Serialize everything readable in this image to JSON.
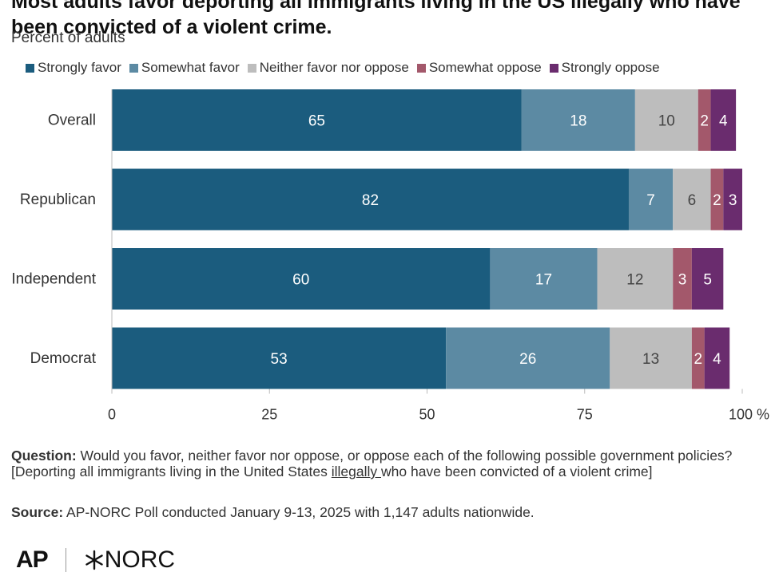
{
  "title_line1": "Most adults favor deporting all immigrants living in the US illegally who have",
  "title_line2": "been convicted of a violent crime.",
  "subtitle": "Percent of adults",
  "legend": [
    {
      "label": "Strongly favor",
      "color": "#1b5c7e"
    },
    {
      "label": "Somewhat favor",
      "color": "#5c8aa3"
    },
    {
      "label": "Neither favor nor oppose",
      "color": "#bdbdbd"
    },
    {
      "label": "Somewhat oppose",
      "color": "#a3586b"
    },
    {
      "label": "Strongly oppose",
      "color": "#6a2c6e"
    }
  ],
  "chart_data": {
    "type": "bar",
    "orientation": "horizontal",
    "stacked": true,
    "categories": [
      "Overall",
      "Republican",
      "Independent",
      "Democrat"
    ],
    "series": [
      {
        "name": "Strongly favor",
        "values": [
          65,
          82,
          60,
          53
        ],
        "color": "#1b5c7e"
      },
      {
        "name": "Somewhat favor",
        "values": [
          18,
          7,
          17,
          26
        ],
        "color": "#5c8aa3"
      },
      {
        "name": "Neither favor nor oppose",
        "values": [
          10,
          6,
          12,
          13
        ],
        "color": "#bdbdbd"
      },
      {
        "name": "Somewhat oppose",
        "values": [
          2,
          2,
          3,
          2
        ],
        "color": "#a3586b"
      },
      {
        "name": "Strongly oppose",
        "values": [
          4,
          3,
          5,
          4
        ],
        "color": "#6a2c6e"
      }
    ],
    "xlim": [
      0,
      100
    ],
    "xticks": [
      0,
      25,
      50,
      75,
      100
    ],
    "xtick_suffix": " %",
    "legend_position": "top",
    "grid": false
  },
  "question_label": "Question:",
  "question_text_1": " Would you favor, neither favor nor oppose, or oppose each of the following possible government policies? [Deporting all immigrants living in the United States ",
  "question_underlined": "illegally ",
  "question_text_2": "who have been convicted of a violent crime]",
  "source_label": "Source:",
  "source_text": " AP-NORC Poll conducted January 9-13, 2025 with 1,147 adults nationwide.",
  "logo_ap": "AP",
  "logo_norc": "NORC"
}
